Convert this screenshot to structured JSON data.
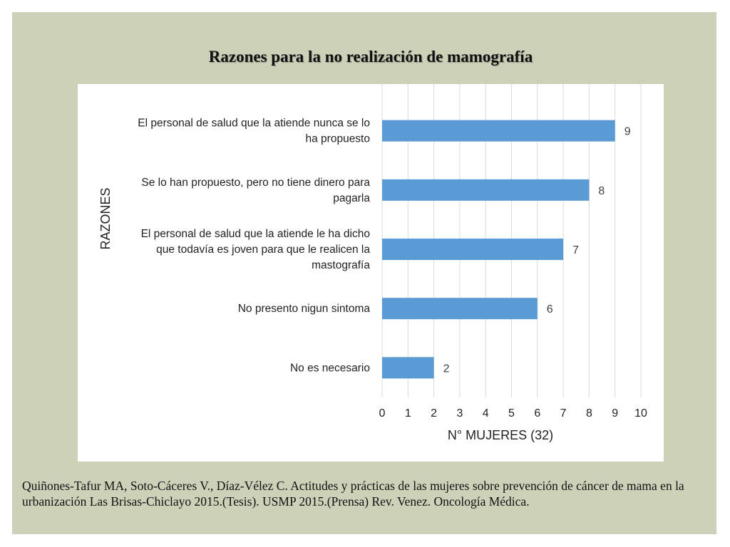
{
  "slide": {
    "title": "Razones para la no realización de mamografía",
    "citation": "Quiñones-Tafur MA, Soto-Cáceres V., Díaz-Vélez C. Actitudes y prácticas de las mujeres sobre prevención de cáncer de mama en la urbanización Las Brisas-Chiclayo 2015.(Tesis). USMP 2015.(Prensa) Rev. Venez. Oncología Médica."
  },
  "colors": {
    "panel_bg": "#ccd1b8",
    "bar": "#5b9bd5",
    "grid": "#d9d9d9",
    "text": "#404040"
  },
  "chart_data": {
    "type": "bar",
    "orientation": "horizontal",
    "categories": [
      [
        "El personal de salud que la atiende nunca se lo",
        "ha propuesto"
      ],
      [
        "Se lo han propuesto, pero no tiene dinero para",
        "pagarla"
      ],
      [
        "El personal de salud que la atiende le ha dicho",
        "que todavía es joven para que le realicen la",
        "mastografía"
      ],
      [
        "No presento nigun sintoma"
      ],
      [
        "No es necesario"
      ]
    ],
    "values": [
      9,
      8,
      7,
      6,
      2
    ],
    "data_labels": [
      "9",
      "8",
      "7",
      "6",
      "2"
    ],
    "xlabel": "N° MUJERES (32)",
    "ylabel": "RAZONES",
    "xlim": [
      0,
      10
    ],
    "xticks": [
      "0",
      "1",
      "2",
      "3",
      "4",
      "5",
      "6",
      "7",
      "8",
      "9",
      "10"
    ],
    "grid": true,
    "legend": "none"
  }
}
